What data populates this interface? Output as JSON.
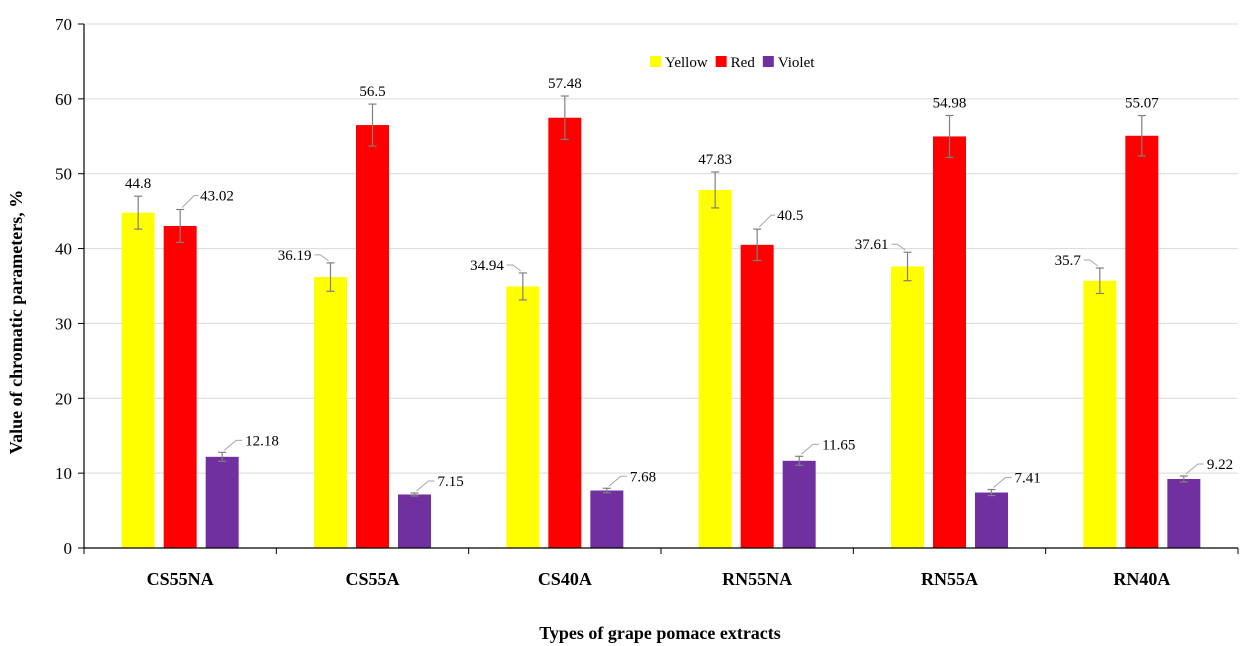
{
  "chart_data": {
    "type": "bar",
    "title": "",
    "xlabel": "Types of grape pomace extracts",
    "ylabel": "Value of chromatic parameters, %",
    "ylim": [
      0,
      70
    ],
    "yticks": [
      0,
      10,
      20,
      30,
      40,
      50,
      60,
      70
    ],
    "grid": true,
    "legend_position": "top-center",
    "categories": [
      "CS55NA",
      "CS55A",
      "CS40A",
      "RN55NA",
      "RN55A",
      "RN40A"
    ],
    "series": [
      {
        "name": "Yellow",
        "color": "#FFFF00",
        "values": [
          44.8,
          36.19,
          34.94,
          47.83,
          37.61,
          35.7
        ],
        "labels": [
          "44.8",
          "36.19",
          "34.94",
          "47.83",
          "37.61",
          "35.7"
        ],
        "errors": [
          2.2,
          1.9,
          1.8,
          2.4,
          1.9,
          1.7
        ]
      },
      {
        "name": "Red",
        "color": "#FF0000",
        "values": [
          43.02,
          56.5,
          57.48,
          40.5,
          54.98,
          55.07
        ],
        "labels": [
          "43.02",
          "56.5",
          "57.48",
          "40.5",
          "54.98",
          "55.07"
        ],
        "errors": [
          2.2,
          2.8,
          2.9,
          2.1,
          2.8,
          2.7
        ]
      },
      {
        "name": "Violet",
        "color": "#7030A0",
        "values": [
          12.18,
          7.15,
          7.68,
          11.65,
          7.41,
          9.22
        ],
        "labels": [
          "12.18",
          "7.15",
          "7.68",
          "11.65",
          "7.41",
          "9.22"
        ],
        "errors": [
          0.6,
          0.2,
          0.3,
          0.6,
          0.4,
          0.4
        ]
      }
    ]
  }
}
